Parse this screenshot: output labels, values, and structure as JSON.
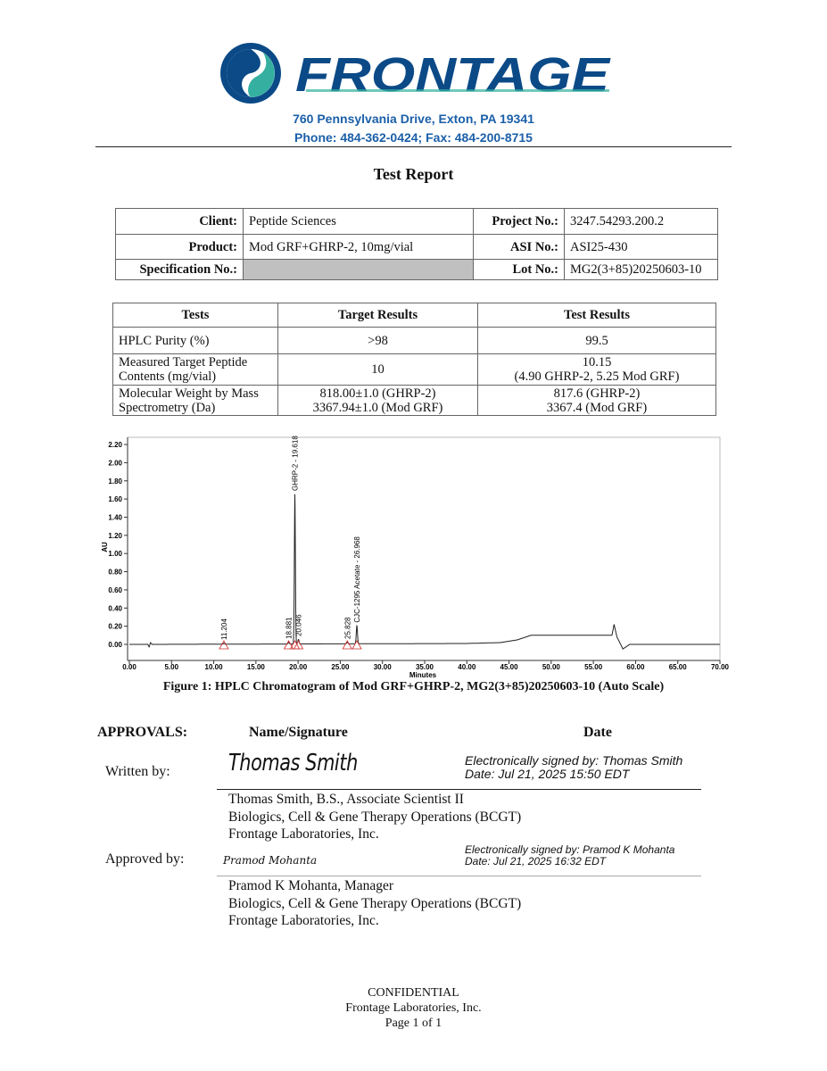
{
  "header": {
    "logo_text": "FRONTAGE",
    "address_line1": "760 Pennsylvania Drive, Exton, PA 19341",
    "address_line2": "Phone: 484-362-0424; Fax: 484-200-8715",
    "brand_colors": {
      "navy": "#0b4a87",
      "teal": "#35b0a0",
      "address": "#1b5fa8"
    }
  },
  "title": "Test Report",
  "info_table": {
    "client_label": "Client:",
    "client": "Peptide Sciences",
    "project_label": "Project No.:",
    "project": "3247.54293.200.2",
    "product_label": "Product:",
    "product": "Mod GRF+GHRP-2, 10mg/vial",
    "asi_label": "ASI No.:",
    "asi": "ASI25-430",
    "spec_label": "Specification No.:",
    "spec": "",
    "lot_label": "Lot No.:",
    "lot": "MG2(3+85)20250603-10"
  },
  "results_table": {
    "headers": [
      "Tests",
      "Target Results",
      "Test Results"
    ],
    "rows": [
      {
        "test": "HPLC Purity (%)",
        "target": ">98",
        "result": "99.5"
      },
      {
        "test": "Measured Target Peptide Contents (mg/vial)",
        "target": "10",
        "result": "10.15",
        "result2": "(4.90 GHRP-2, 5.25 Mod GRF)"
      },
      {
        "test": "Molecular Weight by Mass Spectrometry (Da)",
        "target": "818.00±1.0 (GHRP-2)",
        "target2": "3367.94±1.0 (Mod GRF)",
        "result": "817.6 (GHRP-2)",
        "result2": "3367.4 (Mod GRF)"
      }
    ]
  },
  "chart_data": {
    "type": "line",
    "xlabel": "Minutes",
    "ylabel": "AU",
    "xlim": [
      0,
      70
    ],
    "ylim": [
      -0.17,
      2.28
    ],
    "xticks": [
      "0.00",
      "5.00",
      "10.00",
      "15.00",
      "20.00",
      "25.00",
      "30.00",
      "35.00",
      "40.00",
      "45.00",
      "50.00",
      "55.00",
      "60.00",
      "65.00",
      "70.00"
    ],
    "yticks": [
      "0.00",
      "0.20",
      "0.40",
      "0.60",
      "0.80",
      "1.00",
      "1.20",
      "1.40",
      "1.60",
      "1.80",
      "2.00",
      "2.20"
    ],
    "grid": false,
    "line_color": "#222222",
    "marker_color": "#d03030",
    "peaks": [
      {
        "rt": 11.204,
        "height": 0.01,
        "label": "11.204"
      },
      {
        "rt": 18.881,
        "height": 0.02,
        "label": "18.881"
      },
      {
        "rt": 19.618,
        "height": 1.65,
        "label": "GHRP-2 - 19.618"
      },
      {
        "rt": 20.046,
        "height": 0.05,
        "label": "20.046"
      },
      {
        "rt": 25.828,
        "height": 0.02,
        "label": "25.828"
      },
      {
        "rt": 26.968,
        "height": 0.2,
        "label": "CJC-1295 Acetate - 26.968"
      }
    ],
    "baseline": [
      [
        0,
        0
      ],
      [
        2.2,
        0
      ],
      [
        2.35,
        -0.03
      ],
      [
        2.5,
        0.02
      ],
      [
        2.7,
        0
      ],
      [
        40,
        0.01
      ],
      [
        44,
        0.02
      ],
      [
        46,
        0.05
      ],
      [
        47.6,
        0.1
      ],
      [
        57.2,
        0.1
      ],
      [
        57.45,
        0.22
      ],
      [
        57.8,
        0.08
      ],
      [
        58.5,
        -0.05
      ],
      [
        59.3,
        0
      ],
      [
        70,
        0
      ]
    ]
  },
  "figure_caption": "Figure 1: HPLC Chromatogram of Mod GRF+GHRP-2, MG2(3+85)20250603-10 (Auto Scale)",
  "approvals": {
    "heading": "APPROVALS:",
    "name_heading": "Name/Signature",
    "date_heading": "Date",
    "written_label": "Written by:",
    "written_signature": "Thomas Smith",
    "written_esig": "Electronically signed by: Thomas Smith",
    "written_date": "Date: Jul 21, 2025 15:50 EDT",
    "written_lines": [
      "Thomas Smith, B.S., Associate Scientist II",
      "Biologics, Cell & Gene Therapy Operations (BCGT)",
      "Frontage Laboratories, Inc."
    ],
    "approved_label": "Approved by:",
    "approved_signature": "Pramod Mohanta",
    "approved_esig": "Electronically signed by: Pramod K Mohanta",
    "approved_date": "Date: Jul 21, 2025 16:32 EDT",
    "approved_lines": [
      "Pramod K Mohanta, Manager",
      "Biologics, Cell & Gene Therapy Operations (BCGT)",
      "Frontage Laboratories, Inc."
    ]
  },
  "footer": [
    "CONFIDENTIAL",
    "Frontage Laboratories, Inc.",
    "Page 1 of 1"
  ]
}
